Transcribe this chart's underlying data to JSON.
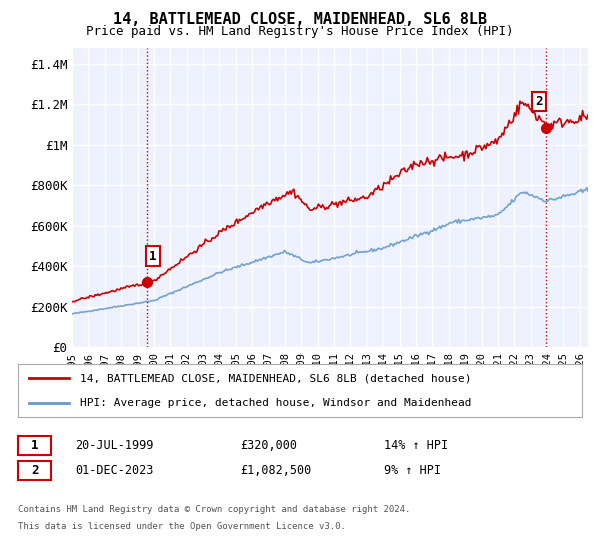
{
  "title": "14, BATTLEMEAD CLOSE, MAIDENHEAD, SL6 8LB",
  "subtitle": "Price paid vs. HM Land Registry's House Price Index (HPI)",
  "ylabel_ticks": [
    "£0",
    "£200K",
    "£400K",
    "£600K",
    "£800K",
    "£1M",
    "£1.2M",
    "£1.4M"
  ],
  "ytick_values": [
    0,
    200000,
    400000,
    600000,
    800000,
    1000000,
    1200000,
    1400000
  ],
  "ylim": [
    0,
    1480000
  ],
  "xlim_start": 1995.0,
  "xlim_end": 2026.5,
  "xticks": [
    1995,
    1996,
    1997,
    1998,
    1999,
    2000,
    2001,
    2002,
    2003,
    2004,
    2005,
    2006,
    2007,
    2008,
    2009,
    2010,
    2011,
    2012,
    2013,
    2014,
    2015,
    2016,
    2017,
    2018,
    2019,
    2020,
    2021,
    2022,
    2023,
    2024,
    2025,
    2026
  ],
  "red_line_color": "#cc0000",
  "blue_line_color": "#6699cc",
  "sale1_year": 1999.55,
  "sale1_price": 320000,
  "sale2_year": 2023.92,
  "sale2_price": 1082500,
  "legend_line1": "14, BATTLEMEAD CLOSE, MAIDENHEAD, SL6 8LB (detached house)",
  "legend_line2": "HPI: Average price, detached house, Windsor and Maidenhead",
  "table_row1_num": "1",
  "table_row1_date": "20-JUL-1999",
  "table_row1_price": "£320,000",
  "table_row1_hpi": "14% ↑ HPI",
  "table_row2_num": "2",
  "table_row2_date": "01-DEC-2023",
  "table_row2_price": "£1,082,500",
  "table_row2_hpi": "9% ↑ HPI",
  "footnote1": "Contains HM Land Registry data © Crown copyright and database right 2024.",
  "footnote2": "This data is licensed under the Open Government Licence v3.0.",
  "background_color": "#ffffff",
  "plot_bg_color": "#eef2ff",
  "grid_color": "#ffffff"
}
